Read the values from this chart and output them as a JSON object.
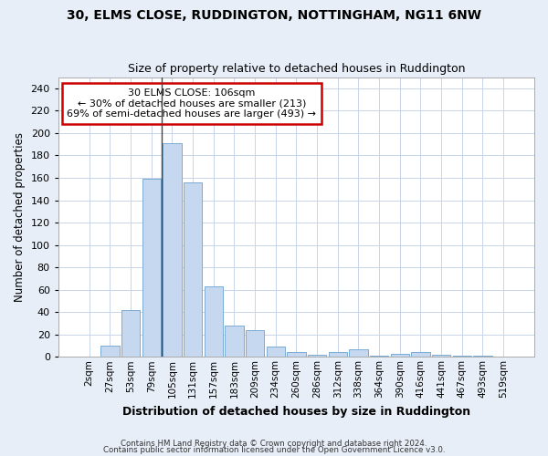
{
  "title1": "30, ELMS CLOSE, RUDDINGTON, NOTTINGHAM, NG11 6NW",
  "title2": "Size of property relative to detached houses in Ruddington",
  "xlabel": "Distribution of detached houses by size in Ruddington",
  "ylabel": "Number of detached properties",
  "categories": [
    "2sqm",
    "27sqm",
    "53sqm",
    "79sqm",
    "105sqm",
    "131sqm",
    "157sqm",
    "183sqm",
    "209sqm",
    "234sqm",
    "260sqm",
    "286sqm",
    "312sqm",
    "338sqm",
    "364sqm",
    "390sqm",
    "416sqm",
    "441sqm",
    "467sqm",
    "493sqm",
    "519sqm"
  ],
  "values": [
    0,
    10,
    42,
    159,
    191,
    156,
    63,
    28,
    24,
    9,
    4,
    2,
    4,
    7,
    1,
    3,
    4,
    2,
    1,
    1,
    0
  ],
  "bar_color": "#c5d8f0",
  "bar_edge_color": "#7aaad4",
  "vline_x_index": 4,
  "annotation_line1": "30 ELMS CLOSE: 106sqm",
  "annotation_line2": "← 30% of detached houses are smaller (213)",
  "annotation_line3": "69% of semi-detached houses are larger (493) →",
  "annotation_box_facecolor": "#ffffff",
  "annotation_box_edgecolor": "#cc0000",
  "vline_color": "#444444",
  "ylim": [
    0,
    250
  ],
  "yticks": [
    0,
    20,
    40,
    60,
    80,
    100,
    120,
    140,
    160,
    180,
    200,
    220,
    240
  ],
  "footer1": "Contains HM Land Registry data © Crown copyright and database right 2024.",
  "footer2": "Contains public sector information licensed under the Open Government Licence v3.0.",
  "bg_color": "#e8eef7",
  "plot_bg_color": "#ffffff",
  "grid_color": "#c8d4e8"
}
